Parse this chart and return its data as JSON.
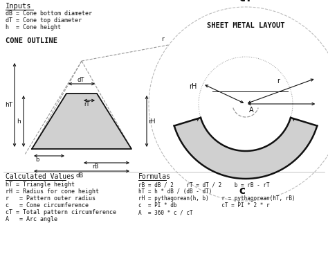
{
  "bg_color": "#ffffff",
  "title_cT": "cT",
  "title_sheet": "SHEET METAL LAYOUT",
  "title_cone": "CONE OUTLINE",
  "title_inputs": "Inputs",
  "inputs_lines": [
    "dB = Cone bottom diameter",
    "dT = Cone top diameter",
    "h  = Cone height"
  ],
  "calc_title": "Calculated Values",
  "calc_lines": [
    "hT = Triangle height",
    "rH = Radius for cone height",
    "r   = Pattern outer radius",
    "c   = Cone circumference",
    "cT = Total pattern circumference",
    "A   = Arc angle"
  ],
  "formula_title": "Formulas",
  "formula_lines": [
    "rB = dB / 2    rT = dT / 2    b = rB - rT",
    "hT = h * dB / (dB - dT)",
    "rH = pythagorean(h, b)    r = pythagorean(hT, rB)",
    "c  = PI * db              cT = PI * 2 * r",
    "A  = 360 * c / cT"
  ],
  "cone_color": "#d0d0d0",
  "line_color": "#111111",
  "dashed_color": "#999999",
  "text_color": "#111111",
  "divider_color": "#aaaaaa"
}
